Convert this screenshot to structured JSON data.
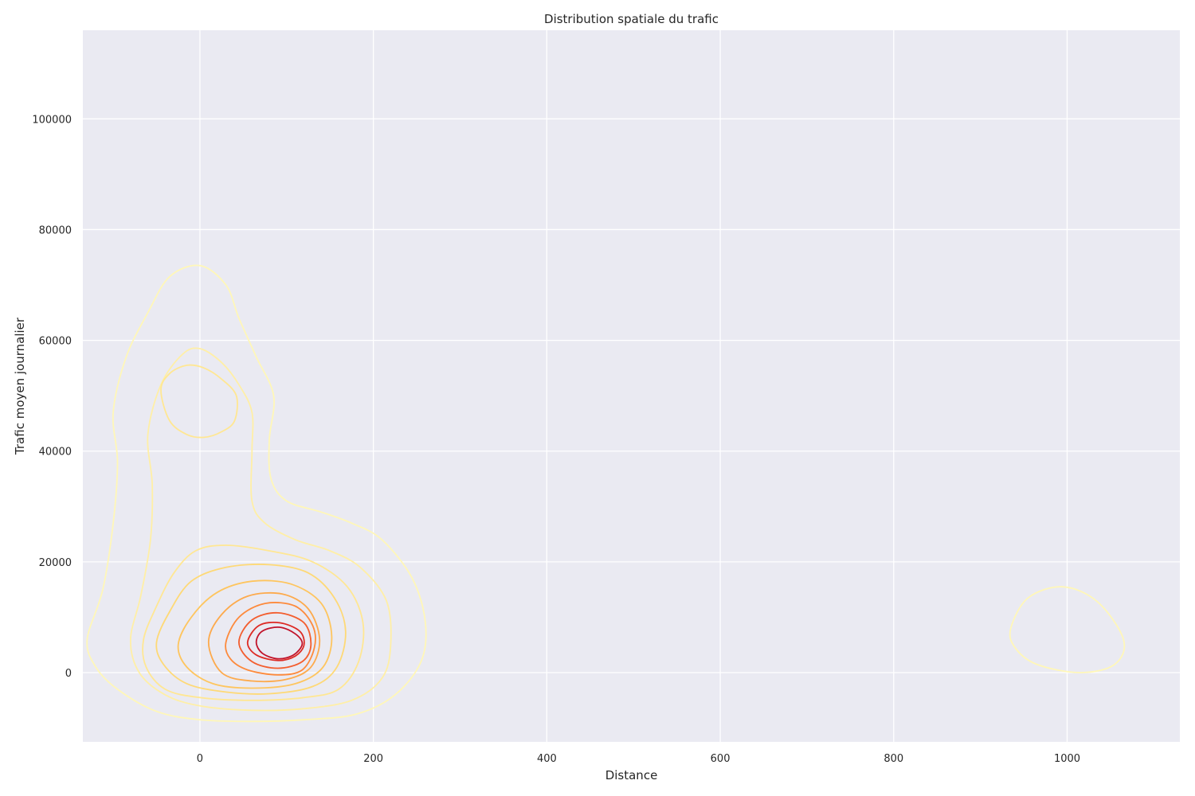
{
  "chart_data": {
    "type": "contour",
    "title": "Distribution spatiale du trafic",
    "xlabel": "Distance",
    "ylabel": "Trafic moyen journalier",
    "xlim": [
      -135,
      1130
    ],
    "ylim": [
      -12500,
      116000
    ],
    "x_ticks": [
      0,
      200,
      400,
      600,
      800,
      1000
    ],
    "x_tick_labels": [
      "0",
      "200",
      "400",
      "600",
      "800",
      "1000"
    ],
    "y_ticks": [
      0,
      20000,
      40000,
      60000,
      80000,
      100000
    ],
    "y_tick_labels": [
      "0",
      "20000",
      "40000",
      "60000",
      "80000",
      "100000"
    ],
    "grid": true,
    "colormap": "YlOrRd",
    "contours": [
      {
        "level": 1,
        "color": "#fff7b8",
        "points": [
          [
            -130,
            6000
          ],
          [
            -112,
            15000
          ],
          [
            -100,
            27000
          ],
          [
            -95,
            38000
          ],
          [
            -100,
            47000
          ],
          [
            -85,
            57000
          ],
          [
            -60,
            65000
          ],
          [
            -35,
            71500
          ],
          [
            0,
            73500
          ],
          [
            30,
            70000
          ],
          [
            45,
            64000
          ],
          [
            65,
            57000
          ],
          [
            85,
            50000
          ],
          [
            80,
            42000
          ],
          [
            82,
            35000
          ],
          [
            100,
            31000
          ],
          [
            140,
            29000
          ],
          [
            175,
            27000
          ],
          [
            210,
            24000
          ],
          [
            245,
            17000
          ],
          [
            260,
            9000
          ],
          [
            255,
            2000
          ],
          [
            225,
            -4000
          ],
          [
            180,
            -7500
          ],
          [
            120,
            -8500
          ],
          [
            60,
            -8800
          ],
          [
            0,
            -8500
          ],
          [
            -50,
            -7000
          ],
          [
            -95,
            -3000
          ],
          [
            -120,
            1000
          ]
        ]
      },
      {
        "level": 1,
        "color": "#fff7b8",
        "points": [
          [
            935,
            8000
          ],
          [
            955,
            13500
          ],
          [
            995,
            15500
          ],
          [
            1035,
            12800
          ],
          [
            1065,
            6000
          ],
          [
            1055,
            1500
          ],
          [
            1015,
            0
          ],
          [
            965,
            1500
          ],
          [
            940,
            4500
          ]
        ]
      },
      {
        "level": 2,
        "color": "#ffefa6",
        "points": [
          [
            -80,
            6000
          ],
          [
            -68,
            14000
          ],
          [
            -57,
            24000
          ],
          [
            -55,
            34000
          ],
          [
            -60,
            43000
          ],
          [
            -45,
            52000
          ],
          [
            -20,
            57500
          ],
          [
            0,
            58500
          ],
          [
            25,
            56000
          ],
          [
            45,
            52000
          ],
          [
            60,
            47000
          ],
          [
            60,
            40000
          ],
          [
            60,
            31000
          ],
          [
            75,
            27000
          ],
          [
            110,
            24000
          ],
          [
            150,
            22000
          ],
          [
            185,
            19000
          ],
          [
            215,
            13000
          ],
          [
            220,
            5000
          ],
          [
            210,
            -1000
          ],
          [
            175,
            -5000
          ],
          [
            120,
            -6500
          ],
          [
            60,
            -6800
          ],
          [
            0,
            -6000
          ],
          [
            -40,
            -4000
          ],
          [
            -70,
            0
          ]
        ]
      },
      {
        "level": 3,
        "color": "#ffe793",
        "points": [
          [
            -45,
            51000
          ],
          [
            -35,
            54000
          ],
          [
            -15,
            55500
          ],
          [
            5,
            55000
          ],
          [
            25,
            53000
          ],
          [
            42,
            50000
          ],
          [
            40,
            45500
          ],
          [
            25,
            43500
          ],
          [
            5,
            42500
          ],
          [
            -15,
            43000
          ],
          [
            -35,
            45500
          ]
        ]
      },
      {
        "level": 3,
        "color": "#ffe793",
        "points": [
          [
            -65,
            6000
          ],
          [
            -50,
            12000
          ],
          [
            -30,
            18000
          ],
          [
            -5,
            22000
          ],
          [
            30,
            23000
          ],
          [
            80,
            22000
          ],
          [
            130,
            20000
          ],
          [
            170,
            15500
          ],
          [
            188,
            9000
          ],
          [
            183,
            2000
          ],
          [
            160,
            -3000
          ],
          [
            120,
            -4500
          ],
          [
            60,
            -5000
          ],
          [
            0,
            -4500
          ],
          [
            -40,
            -3000
          ],
          [
            -62,
            1000
          ]
        ]
      },
      {
        "level": 4,
        "color": "#fed976",
        "points": [
          [
            -50,
            5500
          ],
          [
            -35,
            11000
          ],
          [
            -10,
            16500
          ],
          [
            30,
            19000
          ],
          [
            80,
            19500
          ],
          [
            125,
            18000
          ],
          [
            155,
            13500
          ],
          [
            168,
            7500
          ],
          [
            158,
            1000
          ],
          [
            130,
            -2500
          ],
          [
            80,
            -3800
          ],
          [
            30,
            -3500
          ],
          [
            -15,
            -2000
          ],
          [
            -42,
            1500
          ]
        ]
      },
      {
        "level": 5,
        "color": "#fec55e",
        "points": [
          [
            -25,
            5000
          ],
          [
            -10,
            10000
          ],
          [
            20,
            14500
          ],
          [
            60,
            16500
          ],
          [
            105,
            16000
          ],
          [
            140,
            12500
          ],
          [
            152,
            6500
          ],
          [
            142,
            1000
          ],
          [
            110,
            -2000
          ],
          [
            60,
            -2800
          ],
          [
            15,
            -2000
          ],
          [
            -15,
            1000
          ]
        ]
      },
      {
        "level": 6,
        "color": "#fdaa4c",
        "points": [
          [
            10,
            5500
          ],
          [
            25,
            10500
          ],
          [
            55,
            13800
          ],
          [
            95,
            14200
          ],
          [
            125,
            11500
          ],
          [
            138,
            6000
          ],
          [
            128,
            1000
          ],
          [
            100,
            -1200
          ],
          [
            60,
            -1500
          ],
          [
            25,
            0
          ]
        ]
      },
      {
        "level": 7,
        "color": "#fd8a3c",
        "points": [
          [
            30,
            5500
          ],
          [
            45,
            10000
          ],
          [
            75,
            12500
          ],
          [
            110,
            12000
          ],
          [
            130,
            8500
          ],
          [
            132,
            4500
          ],
          [
            118,
            500
          ],
          [
            90,
            -400
          ],
          [
            55,
            500
          ],
          [
            35,
            2500
          ]
        ]
      },
      {
        "level": 8,
        "color": "#f35d2e",
        "points": [
          [
            45,
            5500
          ],
          [
            60,
            9500
          ],
          [
            90,
            10800
          ],
          [
            120,
            9000
          ],
          [
            128,
            5000
          ],
          [
            118,
            2000
          ],
          [
            90,
            800
          ],
          [
            60,
            2000
          ]
        ]
      },
      {
        "level": 9,
        "color": "#dd2a24",
        "points": [
          [
            55,
            5500
          ],
          [
            68,
            8500
          ],
          [
            92,
            9000
          ],
          [
            115,
            7500
          ],
          [
            120,
            5000
          ],
          [
            110,
            3000
          ],
          [
            90,
            2200
          ],
          [
            65,
            3200
          ]
        ]
      },
      {
        "level": 10,
        "color": "#c1132a",
        "points": [
          [
            65,
            5500
          ],
          [
            72,
            7500
          ],
          [
            92,
            8200
          ],
          [
            110,
            7000
          ],
          [
            118,
            5200
          ],
          [
            108,
            3200
          ],
          [
            90,
            2500
          ],
          [
            72,
            3500
          ]
        ]
      }
    ]
  }
}
